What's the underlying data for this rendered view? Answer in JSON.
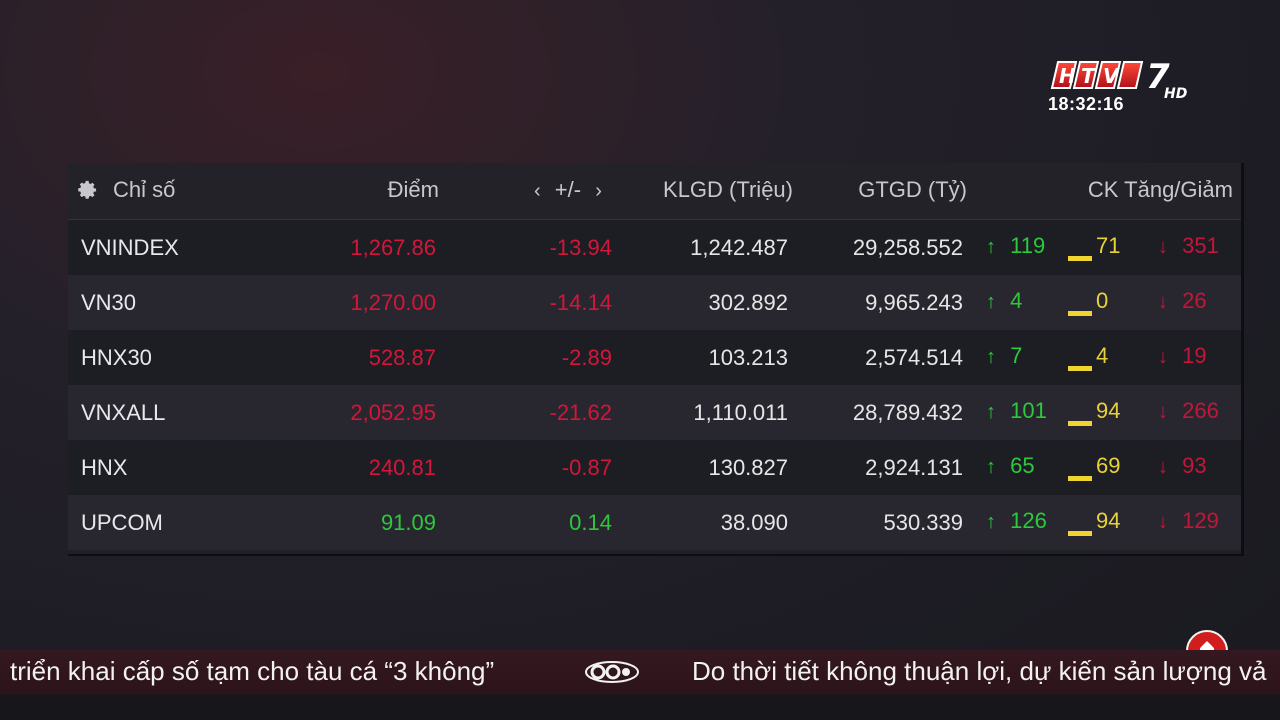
{
  "channel": {
    "logo": "HTV7 HD",
    "time": "18:32:16"
  },
  "table": {
    "headers": {
      "index": "Chỉ số",
      "points": "Điểm",
      "change": "+/-",
      "volume": "KLGD (Triệu)",
      "value": "GTGD (Tỷ)",
      "updown": "CK Tăng/Giảm"
    },
    "rows": [
      {
        "name": "VNINDEX",
        "points": "1,267.86",
        "change": "-13.94",
        "volume": "1,242.487",
        "value": "29,258.552",
        "up": "119",
        "flat": "71",
        "down": "351",
        "trend": "down"
      },
      {
        "name": "VN30",
        "points": "1,270.00",
        "change": "-14.14",
        "volume": "302.892",
        "value": "9,965.243",
        "up": "4",
        "flat": "0",
        "down": "26",
        "trend": "down"
      },
      {
        "name": "HNX30",
        "points": "528.87",
        "change": "-2.89",
        "volume": "103.213",
        "value": "2,574.514",
        "up": "7",
        "flat": "4",
        "down": "19",
        "trend": "down"
      },
      {
        "name": "VNXALL",
        "points": "2,052.95",
        "change": "-21.62",
        "volume": "1,110.011",
        "value": "28,789.432",
        "up": "101",
        "flat": "94",
        "down": "266",
        "trend": "down"
      },
      {
        "name": "HNX",
        "points": "240.81",
        "change": "-0.87",
        "volume": "130.827",
        "value": "2,924.131",
        "up": "65",
        "flat": "69",
        "down": "93",
        "trend": "down"
      },
      {
        "name": "UPCOM",
        "points": "91.09",
        "change": "0.14",
        "volume": "38.090",
        "value": "530.339",
        "up": "126",
        "flat": "94",
        "down": "129",
        "trend": "up"
      }
    ]
  },
  "ticker": {
    "left": "triển khai cấp số tạm cho tàu cá “3 không”",
    "right": "Do thời tiết không thuận lợi, dự kiến sản lượng vả"
  },
  "colors": {
    "down": "#d4163a",
    "up": "#2cc93a",
    "flat": "#f0d530"
  }
}
